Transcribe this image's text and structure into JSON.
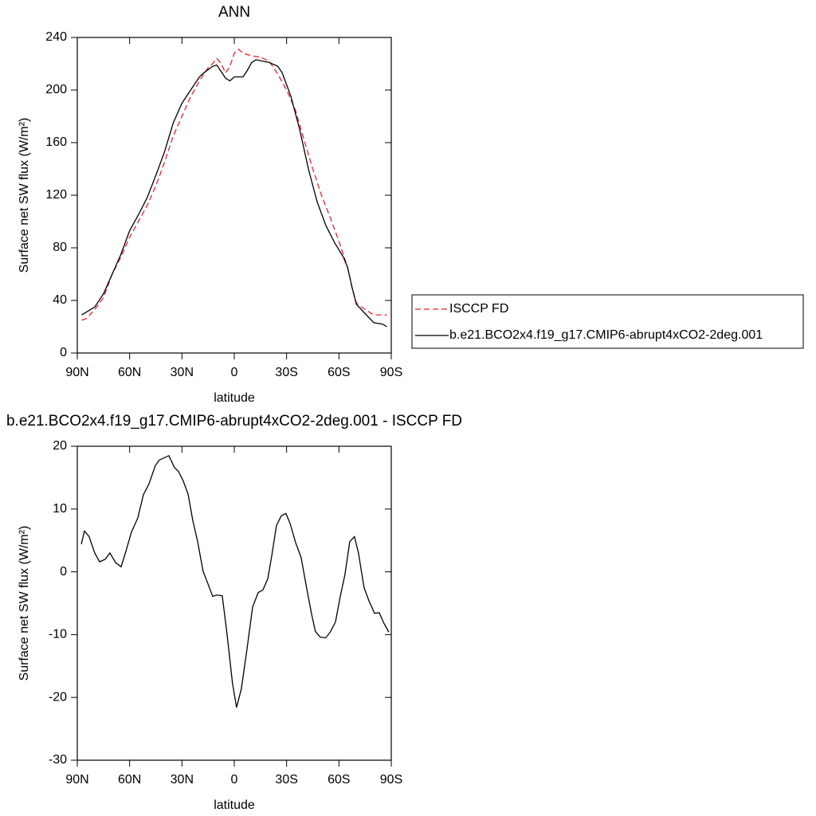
{
  "chart_data": [
    {
      "type": "line",
      "title": "ANN",
      "xlabel": "latitude",
      "ylabel": "Surface net SW flux (W/m²)",
      "xlim": [
        90,
        -90
      ],
      "ylim": [
        0,
        240
      ],
      "xticks": [
        {
          "value": 90,
          "label": "90N"
        },
        {
          "value": 60,
          "label": "60N"
        },
        {
          "value": 30,
          "label": "30N"
        },
        0,
        {
          "value": -30,
          "label": "30S"
        },
        {
          "value": -60,
          "label": "60S"
        },
        {
          "value": -90,
          "label": "90S"
        }
      ],
      "yticks": [
        0,
        40,
        80,
        120,
        160,
        200,
        240
      ],
      "legend": "right",
      "series": [
        {
          "name": "ISCCP FD",
          "color": "#e8212a",
          "dash": true,
          "x": [
            87.5,
            85,
            80,
            75,
            70,
            65,
            60,
            55,
            50,
            45,
            40,
            35,
            30,
            25,
            20,
            15,
            12.5,
            10,
            7.5,
            5,
            2.5,
            0,
            -2.5,
            -5,
            -10,
            -15,
            -20,
            -25,
            -30,
            -35,
            -40,
            -45,
            -50,
            -55,
            -60,
            -62.5,
            -65,
            -67.5,
            -70,
            -75,
            -80,
            -87.5
          ],
          "values": [
            25,
            26,
            33,
            42,
            60,
            73,
            88,
            100,
            112,
            127,
            145,
            165,
            180,
            195,
            207,
            217,
            220,
            224,
            220,
            213,
            218,
            228,
            231,
            228,
            226,
            225,
            222,
            212,
            200,
            185,
            162,
            140,
            120,
            103,
            85,
            75,
            65,
            50,
            38,
            33,
            29,
            29
          ]
        },
        {
          "name": "b.e21.BCO2x4.f19_g17.CMIP6-abrupt4xCO2-2deg.001",
          "color": "#000000",
          "dash": false,
          "x": [
            87.5,
            80,
            75,
            70,
            65,
            60,
            55,
            50,
            45,
            40,
            35,
            30,
            25,
            20,
            17.5,
            12.5,
            10,
            7.5,
            5,
            2.5,
            0,
            -5,
            -7.5,
            -10,
            -12.5,
            -20,
            -25,
            -27.5,
            -32.5,
            -37.5,
            -42.5,
            -47.5,
            -52.5,
            -57.5,
            -62.5,
            -65,
            -67.5,
            -70,
            -75,
            -80,
            -85,
            -87.5
          ],
          "values": [
            29,
            35,
            45,
            60,
            75,
            93,
            105,
            118,
            135,
            153,
            175,
            190,
            200,
            210,
            213,
            218,
            219,
            214,
            209,
            207,
            210,
            210,
            215,
            221,
            223,
            221,
            218,
            213,
            195,
            170,
            140,
            115,
            97,
            84,
            73,
            65,
            50,
            37,
            30,
            23,
            22,
            20
          ]
        }
      ]
    },
    {
      "type": "line",
      "title": "b.e21.BCO2x4.f19_g17.CMIP6-abrupt4xCO2-2deg.001 - ISCCP FD",
      "xlabel": "latitude",
      "ylabel": "Surface net SW flux (W/m²)",
      "xlim": [
        90,
        -90
      ],
      "ylim": [
        -30,
        20
      ],
      "xticks": [
        {
          "value": 90,
          "label": "90N"
        },
        {
          "value": 60,
          "label": "60N"
        },
        {
          "value": 30,
          "label": "30N"
        },
        0,
        {
          "value": -30,
          "label": "30S"
        },
        {
          "value": -60,
          "label": "60S"
        },
        {
          "value": -90,
          "label": "90S"
        }
      ],
      "yticks": [
        -30,
        -20,
        -10,
        0,
        10,
        20
      ],
      "series": [
        {
          "color": "#000000",
          "dash": false,
          "x": [
            87.7,
            85.9,
            83.2,
            80,
            77.2,
            74,
            71.3,
            68.1,
            64.9,
            62.1,
            59,
            55.3,
            52.1,
            48.9,
            45.3,
            43,
            37.5,
            34.3,
            32,
            29.3,
            26.5,
            23.8,
            21,
            17.9,
            15.1,
            12.4,
            10.1,
            6.9,
            4.2,
            1,
            -1.3,
            -4,
            -7.3,
            -10.5,
            -13.7,
            -16.4,
            -19.2,
            -21.4,
            -24.2,
            -26.9,
            -29.6,
            -32,
            -35.1,
            -38.3,
            -41.1,
            -44.3,
            -46.5,
            -49.3,
            -52.5,
            -55.2,
            -58,
            -60.7,
            -63.4,
            -66.2,
            -68.9,
            -71.2,
            -74.4,
            -77.2,
            -80.4,
            -83.1,
            -85.8,
            -88.6
          ],
          "values": [
            4.4,
            6.5,
            5.6,
            3,
            1.6,
            2,
            3,
            1.5,
            0.8,
            3.3,
            6.3,
            8.6,
            12.3,
            14,
            16.9,
            17.8,
            18.5,
            16.6,
            16,
            14.5,
            12.4,
            8.2,
            4.8,
            0.1,
            -1.9,
            -3.9,
            -3.7,
            -3.8,
            -9.8,
            -17.8,
            -21.6,
            -18.7,
            -12.3,
            -5.6,
            -3.3,
            -2.9,
            -1.1,
            2.4,
            7.4,
            8.9,
            9.3,
            7.7,
            4.7,
            2.3,
            -2,
            -6.7,
            -9.5,
            -10.4,
            -10.5,
            -9.5,
            -8,
            -4,
            -0.5,
            4.8,
            5.6,
            3,
            -2.5,
            -4.6,
            -6.6,
            -6.5,
            -8.2,
            -9.6
          ]
        }
      ]
    }
  ]
}
